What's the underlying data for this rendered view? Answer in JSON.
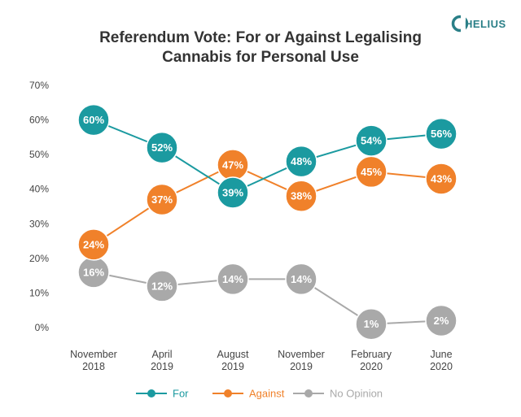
{
  "logo": {
    "text": "HELIUS"
  },
  "chart_data": {
    "type": "line",
    "title_lines": [
      "Referendum Vote: For or Against Legalising",
      "Cannabis for Personal Use"
    ],
    "categories": [
      [
        "November",
        "2018"
      ],
      [
        "April",
        "2019"
      ],
      [
        "August",
        "2019"
      ],
      [
        "November",
        "2019"
      ],
      [
        "February",
        "2020"
      ],
      [
        "June",
        "2020"
      ]
    ],
    "yticks": [
      "0%",
      "10%",
      "20%",
      "30%",
      "40%",
      "50%",
      "60%",
      "70%"
    ],
    "ylim": [
      0,
      70
    ],
    "grid": false,
    "legend_position": "bottom",
    "series": [
      {
        "name": "For",
        "color": "#1b9aa0",
        "values": [
          60,
          52,
          39,
          48,
          54,
          56
        ],
        "labels": [
          "60%",
          "52%",
          "39%",
          "48%",
          "54%",
          "56%"
        ]
      },
      {
        "name": "Against",
        "color": "#f0812a",
        "values": [
          24,
          37,
          47,
          38,
          45,
          43
        ],
        "labels": [
          "24%",
          "37%",
          "47%",
          "38%",
          "45%",
          "43%"
        ]
      },
      {
        "name": "No Opinion",
        "color": "#a9a9a9",
        "values": [
          16,
          12,
          14,
          14,
          1,
          2
        ],
        "labels": [
          "16%",
          "12%",
          "14%",
          "14%",
          "1%",
          "2%"
        ]
      }
    ]
  }
}
